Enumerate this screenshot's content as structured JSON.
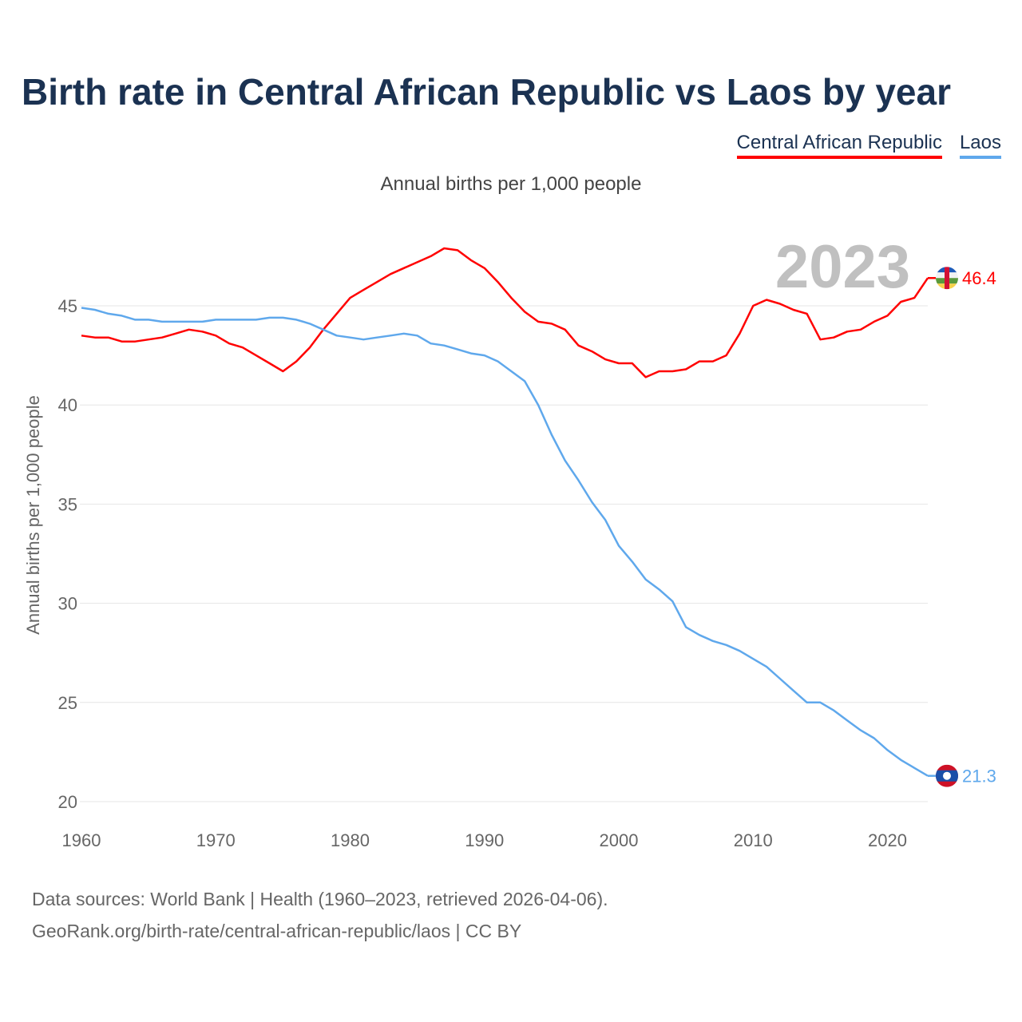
{
  "title": "Birth rate in Central African Republic vs Laos by year",
  "subtitle": "Annual births per 1,000 people",
  "source_line1": "Data sources: World Bank | Health (1960–2023, retrieved 2026-04-06).",
  "source_line2": "GeoRank.org/birth-rate/central-african-republic/laos | CC BY",
  "chart_data": {
    "type": "line",
    "title": "Birth rate in Central African Republic vs Laos by year",
    "ylabel": "Annual births per 1,000 people",
    "xlabel": "",
    "xlim": [
      1960,
      2023
    ],
    "ylim": [
      20,
      48
    ],
    "yticks": [
      20,
      25,
      30,
      35,
      40,
      45
    ],
    "xticks": [
      1960,
      1970,
      1980,
      1990,
      2000,
      2010,
      2020
    ],
    "grid": true,
    "legend_placement": "top-right",
    "year_watermark": "2023",
    "x": [
      1960,
      1961,
      1962,
      1963,
      1964,
      1965,
      1966,
      1967,
      1968,
      1969,
      1970,
      1971,
      1972,
      1973,
      1974,
      1975,
      1976,
      1977,
      1978,
      1979,
      1980,
      1981,
      1982,
      1983,
      1984,
      1985,
      1986,
      1987,
      1988,
      1989,
      1990,
      1991,
      1992,
      1993,
      1994,
      1995,
      1996,
      1997,
      1998,
      1999,
      2000,
      2001,
      2002,
      2003,
      2004,
      2005,
      2006,
      2007,
      2008,
      2009,
      2010,
      2011,
      2012,
      2013,
      2014,
      2015,
      2016,
      2017,
      2018,
      2019,
      2020,
      2021,
      2022,
      2023
    ],
    "series": [
      {
        "name": "Central African Republic",
        "color": "#ff0000",
        "end_label": "46.4",
        "values": [
          43.5,
          43.4,
          43.4,
          43.2,
          43.2,
          43.3,
          43.4,
          43.6,
          43.8,
          43.7,
          43.5,
          43.1,
          42.9,
          42.5,
          42.1,
          41.7,
          42.2,
          42.9,
          43.8,
          44.6,
          45.4,
          45.8,
          46.2,
          46.6,
          46.9,
          47.2,
          47.5,
          47.9,
          47.8,
          47.3,
          46.9,
          46.2,
          45.4,
          44.7,
          44.2,
          44.1,
          43.8,
          43.0,
          42.7,
          42.3,
          42.1,
          42.1,
          41.4,
          41.7,
          41.7,
          41.8,
          42.2,
          42.2,
          42.5,
          43.6,
          45.0,
          45.3,
          45.1,
          44.8,
          44.6,
          43.3,
          43.4,
          43.7,
          43.8,
          44.2,
          44.5,
          45.2,
          45.4,
          46.4
        ]
      },
      {
        "name": "Laos",
        "color": "#5fa8ec",
        "end_label": "21.3",
        "values": [
          44.9,
          44.8,
          44.6,
          44.5,
          44.3,
          44.3,
          44.2,
          44.2,
          44.2,
          44.2,
          44.3,
          44.3,
          44.3,
          44.3,
          44.4,
          44.4,
          44.3,
          44.1,
          43.8,
          43.5,
          43.4,
          43.3,
          43.4,
          43.5,
          43.6,
          43.5,
          43.1,
          43.0,
          42.8,
          42.6,
          42.5,
          42.2,
          41.7,
          41.2,
          40.0,
          38.5,
          37.2,
          36.2,
          35.1,
          34.2,
          32.9,
          32.1,
          31.2,
          30.7,
          30.1,
          28.8,
          28.4,
          28.1,
          27.9,
          27.6,
          27.2,
          26.8,
          26.2,
          25.6,
          25.0,
          25.0,
          24.6,
          24.1,
          23.6,
          23.2,
          22.6,
          22.1,
          21.7,
          21.3
        ]
      }
    ]
  }
}
